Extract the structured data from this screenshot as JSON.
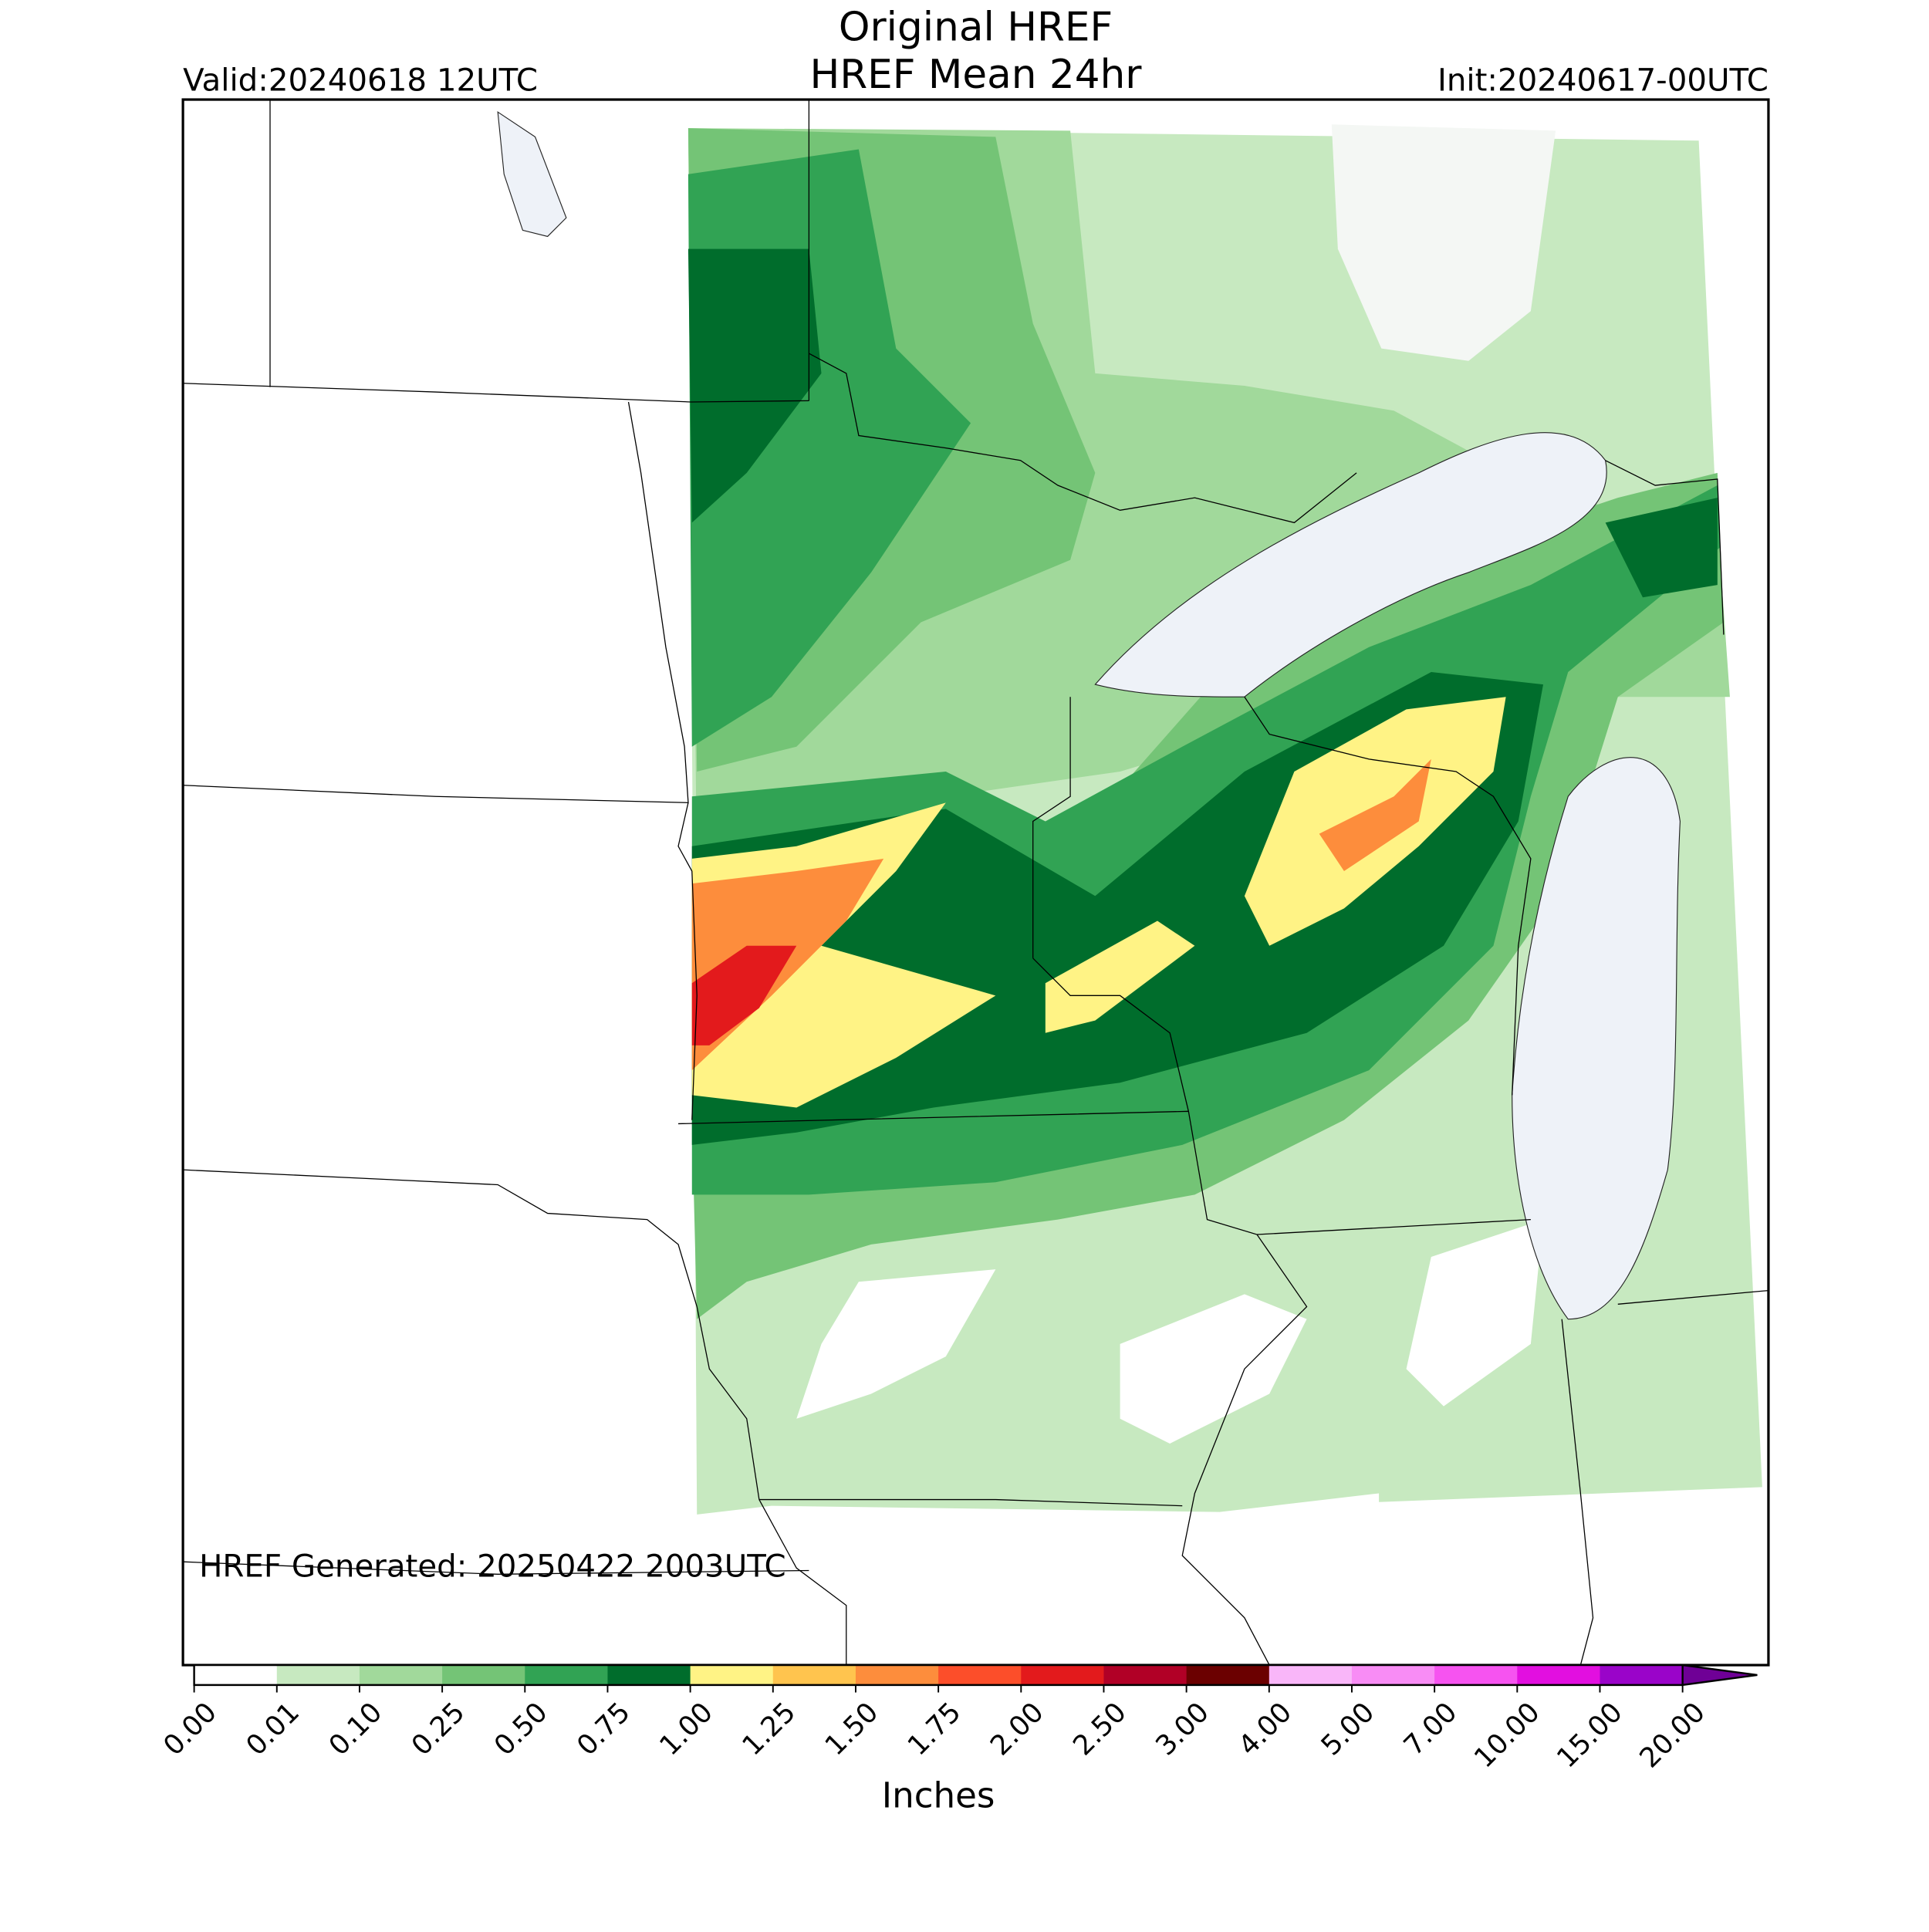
{
  "title": [
    "Original HREF",
    "HREF Mean 24hr"
  ],
  "valid": "Valid:20240618 12UTC",
  "init": "Init:20240617-00UTC",
  "footer": "HREF Generated: 20250422 2003UTC",
  "colorbar": {
    "label": "Inches",
    "ticks": [
      {
        "value": 0,
        "label": "0.00"
      },
      {
        "value": 0.01,
        "label": "0.01"
      },
      {
        "value": 0.1,
        "label": "0.10"
      },
      {
        "value": 0.25,
        "label": "0.25"
      },
      {
        "value": 0.5,
        "label": "0.50"
      },
      {
        "value": 0.75,
        "label": "0.75"
      },
      {
        "value": 1,
        "label": "1.00"
      },
      {
        "value": 1.25,
        "label": "1.25"
      },
      {
        "value": 1.5,
        "label": "1.50"
      },
      {
        "value": 1.75,
        "label": "1.75"
      },
      {
        "value": 2,
        "label": "2.00"
      },
      {
        "value": 2.5,
        "label": "2.50"
      },
      {
        "value": 3,
        "label": "3.00"
      },
      {
        "value": 4,
        "label": "4.00"
      },
      {
        "value": 5,
        "label": "5.00"
      },
      {
        "value": 7,
        "label": "7.00"
      },
      {
        "value": 10,
        "label": "10.00"
      },
      {
        "value": 15,
        "label": "15.00"
      },
      {
        "value": 20,
        "label": "20.00"
      }
    ],
    "colors": [
      "#ffffff",
      "#c7e9c0",
      "#a1d99b",
      "#74c476",
      "#31a354",
      "#006d2c",
      "#fff385",
      "#ffc44e",
      "#fd8d3c",
      "#fc4e2a",
      "#e31a1c",
      "#b10026",
      "#6b0000",
      "#f9b6f9",
      "#f88cf5",
      "#f653f0",
      "#e20fe0",
      "#9a04c9"
    ],
    "extend_color": "#6f0096"
  }
}
